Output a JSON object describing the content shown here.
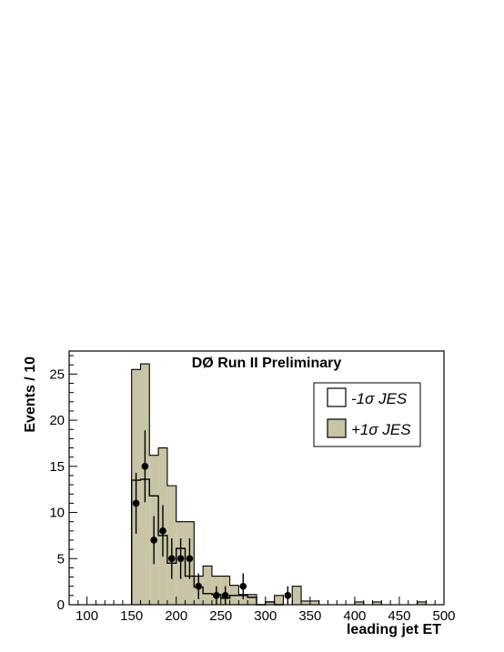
{
  "chart_data": {
    "type": "histogram",
    "title": "DØ Run II Preliminary",
    "xlabel": "leading jet ET",
    "ylabel": "Events / 10",
    "xlim": [
      80,
      500
    ],
    "ylim": [
      0,
      27.5
    ],
    "xticks": [
      "100",
      "150",
      "200",
      "250",
      "300",
      "350",
      "400",
      "450",
      "500"
    ],
    "yticks": [
      "0",
      "5",
      "10",
      "15",
      "20",
      "25"
    ],
    "colors": {
      "plus_fill": "#c8c4a6",
      "line": "#000000",
      "frame": "#000000"
    },
    "series": [
      {
        "name": "+1σ JES",
        "style": "filled",
        "bins": [
          {
            "lo": 150,
            "hi": 160,
            "y": 25.5
          },
          {
            "lo": 160,
            "hi": 170,
            "y": 26.1
          },
          {
            "lo": 170,
            "hi": 180,
            "y": 16.2
          },
          {
            "lo": 180,
            "hi": 190,
            "y": 17.0
          },
          {
            "lo": 190,
            "hi": 200,
            "y": 12.9
          },
          {
            "lo": 200,
            "hi": 210,
            "y": 9.0
          },
          {
            "lo": 210,
            "hi": 220,
            "y": 9.0
          },
          {
            "lo": 220,
            "hi": 230,
            "y": 3.1
          },
          {
            "lo": 230,
            "hi": 240,
            "y": 4.2
          },
          {
            "lo": 240,
            "hi": 250,
            "y": 3.1
          },
          {
            "lo": 250,
            "hi": 260,
            "y": 3.1
          },
          {
            "lo": 260,
            "hi": 270,
            "y": 2.1
          },
          {
            "lo": 270,
            "hi": 280,
            "y": 1.1
          },
          {
            "lo": 280,
            "hi": 290,
            "y": 1.1
          },
          {
            "lo": 290,
            "hi": 300,
            "y": 0.0
          },
          {
            "lo": 300,
            "hi": 310,
            "y": 0.3
          },
          {
            "lo": 310,
            "hi": 320,
            "y": 1.0
          },
          {
            "lo": 320,
            "hi": 330,
            "y": 0.0
          },
          {
            "lo": 330,
            "hi": 340,
            "y": 2.0
          },
          {
            "lo": 340,
            "hi": 350,
            "y": 0.4
          },
          {
            "lo": 350,
            "hi": 360,
            "y": 0.4
          },
          {
            "lo": 360,
            "hi": 400,
            "y": 0.0
          },
          {
            "lo": 400,
            "hi": 410,
            "y": 0.3
          },
          {
            "lo": 410,
            "hi": 420,
            "y": 0.0
          },
          {
            "lo": 420,
            "hi": 430,
            "y": 0.3
          },
          {
            "lo": 430,
            "hi": 470,
            "y": 0.0
          },
          {
            "lo": 470,
            "hi": 480,
            "y": 0.3
          }
        ]
      },
      {
        "name": "-1σ JES",
        "style": "outline",
        "bins": [
          {
            "lo": 150,
            "hi": 160,
            "y": 13.5
          },
          {
            "lo": 160,
            "hi": 170,
            "y": 13.6
          },
          {
            "lo": 170,
            "hi": 180,
            "y": 11.8
          },
          {
            "lo": 180,
            "hi": 190,
            "y": 7.5
          },
          {
            "lo": 190,
            "hi": 200,
            "y": 4.5
          },
          {
            "lo": 200,
            "hi": 210,
            "y": 6.1
          },
          {
            "lo": 210,
            "hi": 220,
            "y": 3.1
          },
          {
            "lo": 220,
            "hi": 230,
            "y": 1.9
          },
          {
            "lo": 230,
            "hi": 240,
            "y": 1.2
          },
          {
            "lo": 240,
            "hi": 250,
            "y": 1.1
          },
          {
            "lo": 250,
            "hi": 260,
            "y": 0.7
          },
          {
            "lo": 260,
            "hi": 270,
            "y": 1.0
          },
          {
            "lo": 270,
            "hi": 280,
            "y": 1.0
          },
          {
            "lo": 280,
            "hi": 290,
            "y": 0.8
          },
          {
            "lo": 290,
            "hi": 300,
            "y": 0.0
          },
          {
            "lo": 300,
            "hi": 310,
            "y": 0.3
          },
          {
            "lo": 310,
            "hi": 320,
            "y": 0.0
          }
        ]
      }
    ],
    "data_points": {
      "x": [
        155,
        165,
        175,
        185,
        195,
        205,
        215,
        225,
        245,
        255,
        275,
        325
      ],
      "y": [
        11,
        15,
        7,
        8,
        5,
        5,
        5,
        2,
        1,
        1,
        2,
        1
      ],
      "err": [
        3.3,
        3.9,
        2.6,
        2.8,
        2.2,
        2.2,
        2.2,
        1.4,
        1.0,
        1.0,
        1.4,
        1.0
      ]
    },
    "legend": {
      "position": "top-right",
      "entries": [
        {
          "label": "-1σ JES",
          "style": "outline"
        },
        {
          "label": "+1σ JES",
          "style": "filled"
        }
      ]
    },
    "grid": false
  }
}
